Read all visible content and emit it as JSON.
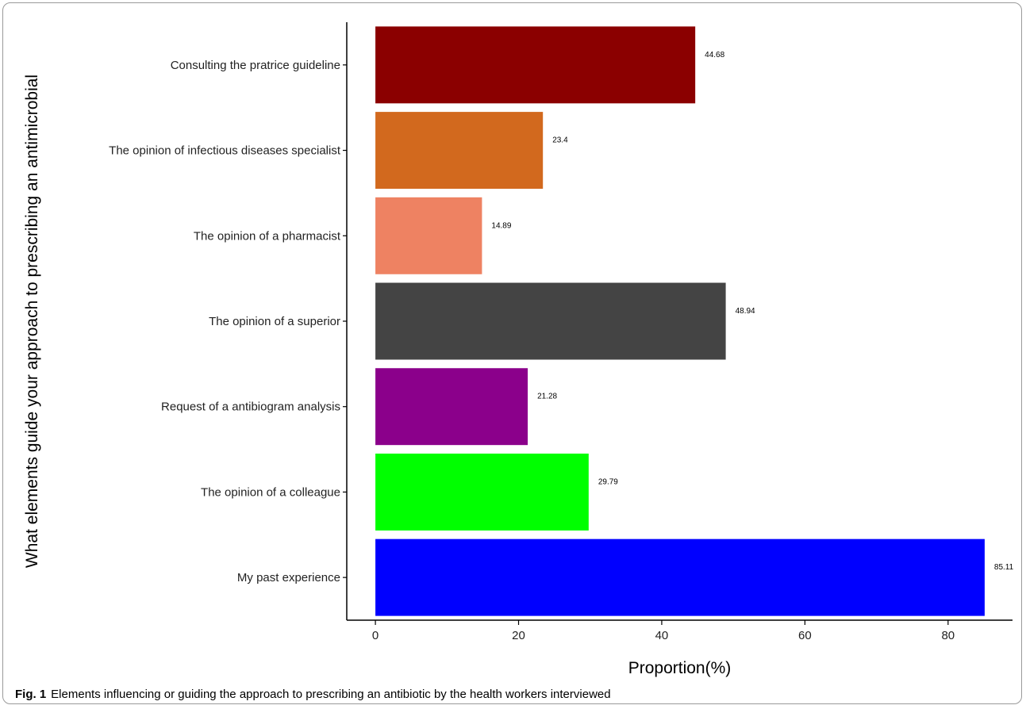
{
  "chart_data": {
    "type": "bar",
    "orientation": "horizontal",
    "categories": [
      "Consulting the pratrice guideline",
      "The opinion of infectious diseases specialist",
      "The opinion of a pharmacist",
      "The opinion of a superior",
      "Request of a antibiogram analysis",
      "The opinion of a colleague",
      "My past experience"
    ],
    "values": [
      44.68,
      23.4,
      14.89,
      48.94,
      21.28,
      29.79,
      85.11
    ],
    "value_labels": [
      "44.68",
      "23.4",
      "14.89",
      "48.94",
      "21.28",
      "29.79",
      "85.11"
    ],
    "colors": [
      "#8b0000",
      "#d2691e",
      "#ee8262",
      "#444444",
      "#8b008b",
      "#00ff00",
      "#0000ff"
    ],
    "xlabel": "Proportion(%)",
    "ylabel": "What elements guide your approach to prescribing an antimicrobial",
    "xticks": [
      0,
      20,
      40,
      60,
      80
    ],
    "xlim": [
      -4,
      89
    ],
    "grid": false
  },
  "caption": {
    "label": "Fig. 1",
    "text": "Elements influencing or guiding the approach to prescribing an antibiotic by the health workers interviewed"
  }
}
